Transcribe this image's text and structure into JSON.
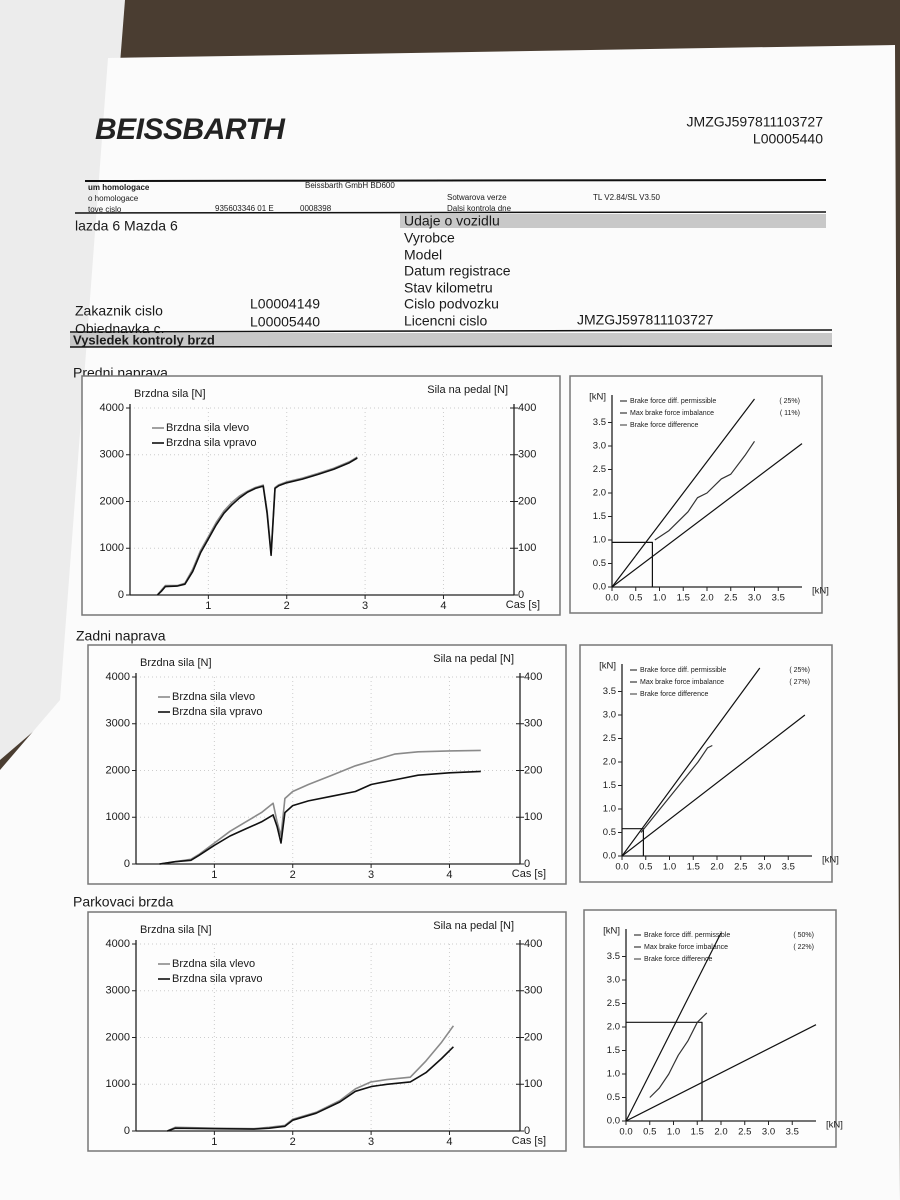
{
  "header": {
    "logo": "BEISSBARTH",
    "vin": "JMZGJ597811103727",
    "order": "L00005440"
  },
  "info": {
    "row1": [
      "um homologace",
      "Beissbarth GmbH BD600"
    ],
    "row2": [
      "o homologace",
      "Sotwarova verze",
      "TL V2.84/SL V3.50"
    ],
    "row3": [
      "tove cislo",
      "935603346 01 E",
      "0008398",
      "Dalsi kontrola dne"
    ]
  },
  "vehicle": {
    "heading": "Udaje o vozidlu",
    "name": "lazda 6 Mazda 6",
    "labels": [
      "Vyrobce",
      "Model",
      "Datum registrace",
      "Stav kilometru",
      "Cislo podvozku",
      "Licencni cislo"
    ],
    "licence": "JMZGJ597811103727",
    "customer_label": "Zakaznik cislo",
    "customer": "L00004149",
    "order_label": "Objednavka c.",
    "order": "L00005440"
  },
  "results_heading": "Vysledek kontroly brzd",
  "sections": [
    "Predni naprava",
    "Zadni naprava",
    "Parkovaci brzda"
  ],
  "chart_data": [
    {
      "type": "line",
      "ylabel": "Brzdna sila [N]",
      "y2label": "Sila na pedal [N]",
      "xlabel": "Cas [s]",
      "xlim": [
        0,
        4.9
      ],
      "xticks": [
        1,
        2,
        3,
        4
      ],
      "ylim": [
        0,
        4000
      ],
      "yticks": [
        0,
        1000,
        2000,
        3000,
        4000
      ],
      "y2lim": [
        0,
        400
      ],
      "y2ticks": [
        0,
        100,
        200,
        300,
        400
      ],
      "grid": true,
      "series": [
        {
          "name": "Brzdna sila vlevo",
          "color": "#8a8a8a",
          "x": [
            0.35,
            0.4,
            0.45,
            0.6,
            0.7,
            0.8,
            0.9,
            1.0,
            1.1,
            1.2,
            1.3,
            1.4,
            1.5,
            1.6,
            1.7,
            1.75,
            1.8,
            1.85,
            1.9,
            2.0,
            2.2,
            2.4,
            2.6,
            2.8,
            2.9
          ],
          "values": [
            0,
            100,
            200,
            200,
            250,
            550,
            950,
            1250,
            1550,
            1800,
            1980,
            2120,
            2220,
            2300,
            2350,
            1800,
            900,
            2300,
            2360,
            2420,
            2500,
            2600,
            2710,
            2850,
            2950
          ]
        },
        {
          "name": "Brzdna sila vpravo",
          "color": "#111111",
          "x": [
            0.35,
            0.4,
            0.45,
            0.6,
            0.7,
            0.8,
            0.9,
            1.0,
            1.1,
            1.2,
            1.3,
            1.4,
            1.5,
            1.6,
            1.7,
            1.75,
            1.8,
            1.85,
            1.9,
            2.0,
            2.2,
            2.4,
            2.6,
            2.8,
            2.9
          ],
          "values": [
            0,
            80,
            180,
            190,
            230,
            500,
            900,
            1200,
            1500,
            1750,
            1930,
            2080,
            2200,
            2280,
            2330,
            1750,
            850,
            2280,
            2340,
            2400,
            2480,
            2580,
            2690,
            2830,
            2930
          ]
        }
      ]
    },
    {
      "type": "line",
      "xlabel": "[kN]",
      "ylabel": "[kN]",
      "xlim": [
        0,
        4
      ],
      "xticks": [
        {
          "value": 0,
          "label": "0.0"
        },
        0.5,
        {
          "value": 1,
          "label": "1.0"
        },
        1.5,
        {
          "value": 2,
          "label": "2.0"
        },
        2.5,
        {
          "value": 3,
          "label": "3.0"
        },
        3.5
      ],
      "ylim": [
        0,
        4
      ],
      "yticks": [
        {
          "value": 0,
          "label": "0.0"
        },
        0.5,
        {
          "value": 1,
          "label": "1.0"
        },
        1.5,
        {
          "value": 2,
          "label": "2.0"
        },
        2.5,
        {
          "value": 3,
          "label": "3.0"
        },
        3.5
      ],
      "legend_notes": [
        "( 25%)",
        "( 11%)"
      ],
      "series": [
        {
          "name": "Brake force diff. permissible",
          "color": "#111111",
          "x": [
            0,
            3.0,
            null,
            0,
            4.0
          ],
          "values": [
            0,
            4.0,
            null,
            0,
            3.05
          ]
        },
        {
          "name": "Max brake force imbalance",
          "color": "#111111",
          "x": [
            0,
            0.85,
            0.85
          ],
          "values": [
            0.95,
            0.95,
            0
          ]
        },
        {
          "name": "Brake force difference",
          "color": "#333333",
          "x": [
            0.9,
            1.2,
            1.6,
            1.8,
            2.0,
            2.3,
            2.5,
            2.8,
            3.0
          ],
          "values": [
            1.0,
            1.2,
            1.6,
            1.9,
            2.0,
            2.3,
            2.4,
            2.8,
            3.1
          ]
        }
      ]
    },
    {
      "type": "line",
      "ylabel": "Brzdna sila [N]",
      "y2label": "Sila na pedal [N]",
      "xlabel": "Cas [s]",
      "xlim": [
        0,
        4.9
      ],
      "xticks": [
        1,
        2,
        3,
        4
      ],
      "ylim": [
        0,
        4000
      ],
      "yticks": [
        0,
        1000,
        2000,
        3000,
        4000
      ],
      "y2lim": [
        0,
        400
      ],
      "y2ticks": [
        0,
        100,
        200,
        300,
        400
      ],
      "grid": true,
      "series": [
        {
          "name": "Brzdna sila vlevo",
          "color": "#8a8a8a",
          "x": [
            0.3,
            0.5,
            0.7,
            0.8,
            1.0,
            1.2,
            1.4,
            1.6,
            1.75,
            1.8,
            1.85,
            1.9,
            2.0,
            2.2,
            2.5,
            2.8,
            3.0,
            3.3,
            3.6,
            4.0,
            4.4
          ],
          "values": [
            0,
            50,
            100,
            200,
            450,
            700,
            900,
            1100,
            1300,
            900,
            600,
            1400,
            1550,
            1700,
            1900,
            2100,
            2200,
            2350,
            2400,
            2420,
            2430
          ]
        },
        {
          "name": "Brzdna sila vpravo",
          "color": "#111111",
          "x": [
            0.3,
            0.5,
            0.7,
            0.8,
            1.0,
            1.2,
            1.4,
            1.6,
            1.75,
            1.8,
            1.85,
            1.9,
            2.0,
            2.2,
            2.5,
            2.8,
            3.0,
            3.3,
            3.6,
            4.0,
            4.4
          ],
          "values": [
            0,
            50,
            80,
            180,
            400,
            600,
            750,
            900,
            1050,
            800,
            450,
            1100,
            1250,
            1350,
            1450,
            1550,
            1700,
            1800,
            1900,
            1950,
            1980
          ]
        }
      ]
    },
    {
      "type": "line",
      "xlabel": "[kN]",
      "ylabel": "[kN]",
      "xlim": [
        0,
        4
      ],
      "xticks": [
        {
          "value": 0,
          "label": "0.0"
        },
        0.5,
        {
          "value": 1,
          "label": "1.0"
        },
        1.5,
        {
          "value": 2,
          "label": "2.0"
        },
        2.5,
        {
          "value": 3,
          "label": "3.0"
        },
        3.5
      ],
      "ylim": [
        0,
        4
      ],
      "yticks": [
        {
          "value": 0,
          "label": "0.0"
        },
        0.5,
        {
          "value": 1,
          "label": "1.0"
        },
        1.5,
        {
          "value": 2,
          "label": "2.0"
        },
        2.5,
        {
          "value": 3,
          "label": "3.0"
        },
        3.5
      ],
      "legend_notes": [
        "( 25%)",
        "( 27%)"
      ],
      "series": [
        {
          "name": "Brake force diff. permissible",
          "color": "#111111",
          "x": [
            0,
            2.9,
            null,
            0,
            3.85
          ],
          "values": [
            0,
            4.0,
            null,
            0,
            3.0
          ]
        },
        {
          "name": "Max brake force imbalance",
          "color": "#111111",
          "x": [
            0,
            0.45,
            0.45
          ],
          "values": [
            0.58,
            0.58,
            0
          ]
        },
        {
          "name": "Brake force difference",
          "color": "#333333",
          "x": [
            0.4,
            0.6,
            0.8,
            1.0,
            1.2,
            1.4,
            1.6,
            1.8,
            1.9
          ],
          "values": [
            0.5,
            0.75,
            1.0,
            1.25,
            1.5,
            1.75,
            2.0,
            2.3,
            2.35
          ]
        }
      ]
    },
    {
      "type": "line",
      "ylabel": "Brzdna sila [N]",
      "y2label": "Sila na pedal [N]",
      "xlabel": "Cas [s]",
      "xlim": [
        0,
        4.9
      ],
      "xticks": [
        1,
        2,
        3,
        4
      ],
      "ylim": [
        0,
        4000
      ],
      "yticks": [
        0,
        1000,
        2000,
        3000,
        4000
      ],
      "y2lim": [
        0,
        400
      ],
      "y2ticks": [
        0,
        100,
        200,
        300,
        400
      ],
      "grid": true,
      "series": [
        {
          "name": "Brzdna sila vlevo",
          "color": "#8a8a8a",
          "x": [
            0.4,
            0.5,
            1.0,
            1.5,
            1.7,
            1.9,
            2.0,
            2.3,
            2.6,
            2.8,
            3.0,
            3.2,
            3.5,
            3.7,
            3.9,
            4.05
          ],
          "values": [
            0,
            80,
            60,
            50,
            80,
            120,
            250,
            400,
            650,
            900,
            1050,
            1100,
            1150,
            1500,
            1900,
            2250
          ]
        },
        {
          "name": "Brzdna sila vpravo",
          "color": "#111111",
          "x": [
            0.4,
            0.5,
            1.0,
            1.5,
            1.7,
            1.9,
            2.0,
            2.3,
            2.6,
            2.8,
            3.0,
            3.2,
            3.5,
            3.7,
            3.9,
            4.05
          ],
          "values": [
            0,
            60,
            50,
            40,
            60,
            100,
            230,
            380,
            620,
            850,
            950,
            1000,
            1050,
            1250,
            1550,
            1800
          ]
        }
      ]
    },
    {
      "type": "line",
      "xlabel": "[kN]",
      "ylabel": "[kN]",
      "xlim": [
        0,
        4
      ],
      "xticks": [
        {
          "value": 0,
          "label": "0.0"
        },
        0.5,
        {
          "value": 1,
          "label": "1.0"
        },
        1.5,
        {
          "value": 2,
          "label": "2.0"
        },
        2.5,
        {
          "value": 3,
          "label": "3.0"
        },
        3.5
      ],
      "ylim": [
        0,
        4
      ],
      "yticks": [
        {
          "value": 0,
          "label": "0.0"
        },
        0.5,
        {
          "value": 1,
          "label": "1.0"
        },
        1.5,
        {
          "value": 2,
          "label": "2.0"
        },
        2.5,
        {
          "value": 3,
          "label": "3.0"
        },
        3.5
      ],
      "legend_notes": [
        "( 50%)",
        "( 22%)"
      ],
      "series": [
        {
          "name": "Brake force diff. permissible",
          "color": "#111111",
          "x": [
            0,
            2.0,
            null,
            0,
            4.0
          ],
          "values": [
            0,
            4.0,
            null,
            0,
            2.05
          ]
        },
        {
          "name": "Max brake force imbalance",
          "color": "#111111",
          "x": [
            0,
            1.6,
            1.6
          ],
          "values": [
            2.1,
            2.1,
            0
          ]
        },
        {
          "name": "Brake force difference",
          "color": "#333333",
          "x": [
            0.5,
            0.7,
            0.9,
            1.0,
            1.1,
            1.3,
            1.5,
            1.7
          ],
          "values": [
            0.5,
            0.7,
            1.0,
            1.2,
            1.4,
            1.7,
            2.1,
            2.3
          ]
        }
      ]
    }
  ]
}
